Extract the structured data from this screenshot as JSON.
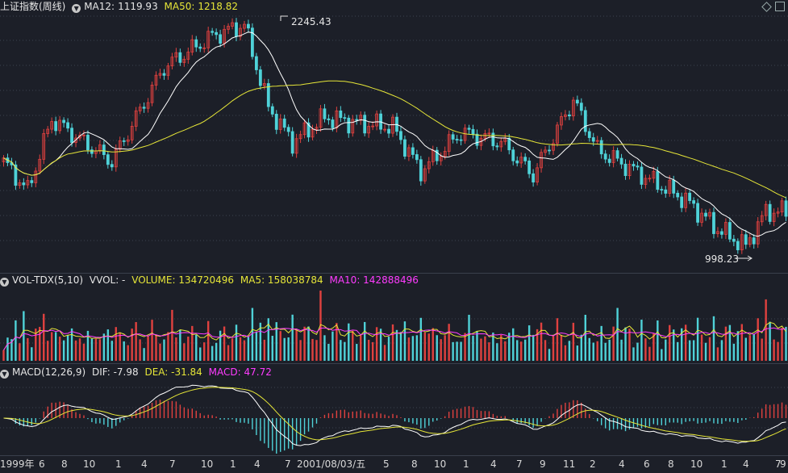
{
  "main_header": {
    "title": "上证指数(周线)",
    "ma12_label": "MA12:",
    "ma12_value": "1119.93",
    "ma50_label": "MA50:",
    "ma50_value": "1218.82",
    "high_label": "2245.43",
    "low_label": "998.23"
  },
  "vol_header": {
    "name": "VOL-TDX(5,10)",
    "vvol": "VVOL: -",
    "volume": "VOLUME: 134720496",
    "ma5": "MA5: 158038784",
    "ma10": "MA10: 142888496"
  },
  "macd_header": {
    "name": "MACD(12,26,9)",
    "dif": "DIF: -7.98",
    "dea": "DEA: -31.84",
    "macd": "MACD: 47.72"
  },
  "x_axis": [
    "1999年",
    "6",
    "8",
    "10",
    "1",
    "4",
    "7",
    "10",
    "1",
    "4",
    "7",
    "2001/08/03/五",
    "5",
    "8",
    "10",
    "1",
    "4",
    "7",
    "9",
    "11",
    "2",
    "4",
    "6",
    "8",
    "10",
    "1",
    "4",
    "7",
    "9"
  ],
  "colors": {
    "background": "#1c1f28",
    "up": "#e0413f",
    "down": "#4fd2d8",
    "ma_fast": "#ffffff",
    "ma_slow": "#e6e638",
    "macd_line": "#ff3cff"
  },
  "chart_data": {
    "type": "candlestick",
    "anchors": [
      [
        0,
        1500
      ],
      [
        6,
        1350
      ],
      [
        12,
        1720
      ],
      [
        20,
        1600
      ],
      [
        27,
        1500
      ],
      [
        40,
        1990
      ],
      [
        52,
        2150
      ],
      [
        60,
        2210
      ],
      [
        66,
        1780
      ],
      [
        72,
        1600
      ],
      [
        80,
        1730
      ],
      [
        88,
        1700
      ],
      [
        97,
        1680
      ],
      [
        104,
        1450
      ],
      [
        114,
        1650
      ],
      [
        124,
        1600
      ],
      [
        132,
        1430
      ],
      [
        142,
        1820
      ],
      [
        148,
        1560
      ],
      [
        160,
        1420
      ],
      [
        170,
        1300
      ],
      [
        178,
        1150
      ],
      [
        185,
        1060
      ],
      [
        190,
        1240
      ]
    ],
    "high": 2245.43,
    "low": 998.23,
    "ma12": 1119.93,
    "ma50": 1218.82,
    "volume": 134720496,
    "vol_ma5": 158038784,
    "vol_ma10": 142888496,
    "dif": -7.98,
    "dea": -31.84,
    "macd": 47.72
  }
}
